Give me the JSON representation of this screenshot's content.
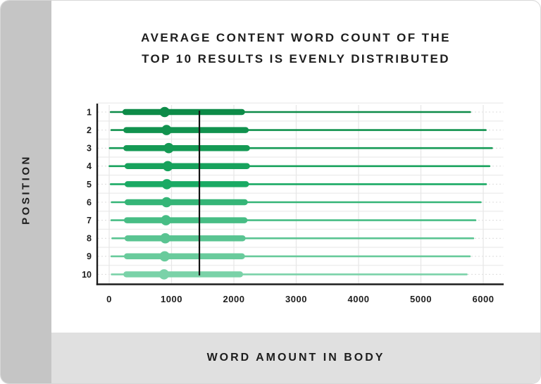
{
  "card": {
    "title_line1": "AVERAGE CONTENT WORD COUNT OF THE",
    "title_line2": "TOP 10 RESULTS IS EVENLY DISTRIBUTED",
    "y_axis_title": "POSITION",
    "x_axis_title": "WORD AMOUNT IN BODY"
  },
  "colors": {
    "sidebar_bg": "#c5c5c5",
    "footer_bg": "#e0e0e0",
    "text_dark": "#1e1e1e",
    "axis": "#1d1d1d",
    "grid_solid": "#ededed",
    "grid_dotted": "#dcdcdc",
    "grid_vertical": "#e7e7e7",
    "average_line": "#141414"
  },
  "chart_data": {
    "type": "box-whisker-horizontal",
    "title": "AVERAGE CONTENT WORD COUNT OF THE TOP 10 RESULTS IS EVENLY DISTRIBUTED",
    "xlabel": "WORD AMOUNT IN BODY",
    "ylabel": "POSITION",
    "x_ticks": [
      "0",
      "1000",
      "2000",
      "3000",
      "4000",
      "5000",
      "6000"
    ],
    "x_tick_values": [
      0,
      1000,
      2000,
      3000,
      4000,
      5000,
      6000
    ],
    "xlim": [
      0,
      6320
    ],
    "grid": true,
    "legend_position": "none",
    "average_line_value": 1447,
    "rows": [
      {
        "position": "1",
        "whisker_min": 25,
        "box_start": 260,
        "dot": 890,
        "box_end": 2130,
        "whisker_max": 5790,
        "color": "#0d8b48"
      },
      {
        "position": "2",
        "whisker_min": 35,
        "box_start": 275,
        "dot": 920,
        "box_end": 2190,
        "whisker_max": 6040,
        "color": "#11924e"
      },
      {
        "position": "3",
        "whisker_min": 10,
        "box_start": 275,
        "dot": 955,
        "box_end": 2210,
        "whisker_max": 6140,
        "color": "#159a55"
      },
      {
        "position": "4",
        "whisker_min": 5,
        "box_start": 295,
        "dot": 940,
        "box_end": 2210,
        "whisker_max": 6100,
        "color": "#17a25c"
      },
      {
        "position": "5",
        "whisker_min": 25,
        "box_start": 295,
        "dot": 925,
        "box_end": 2195,
        "whisker_max": 6045,
        "color": "#1aaa64"
      },
      {
        "position": "6",
        "whisker_min": 40,
        "box_start": 295,
        "dot": 920,
        "box_end": 2175,
        "whisker_max": 5960,
        "color": "#35b577"
      },
      {
        "position": "7",
        "whisker_min": 35,
        "box_start": 285,
        "dot": 910,
        "box_end": 2170,
        "whisker_max": 5875,
        "color": "#47bd85"
      },
      {
        "position": "8",
        "whisker_min": 50,
        "box_start": 295,
        "dot": 900,
        "box_end": 2140,
        "whisker_max": 5840,
        "color": "#5ac492"
      },
      {
        "position": "9",
        "whisker_min": 35,
        "box_start": 285,
        "dot": 890,
        "box_end": 2130,
        "whisker_max": 5785,
        "color": "#69cb9c"
      },
      {
        "position": "10",
        "whisker_min": 40,
        "box_start": 275,
        "dot": 880,
        "box_end": 2100,
        "whisker_max": 5735,
        "color": "#7ad2a8"
      }
    ]
  }
}
